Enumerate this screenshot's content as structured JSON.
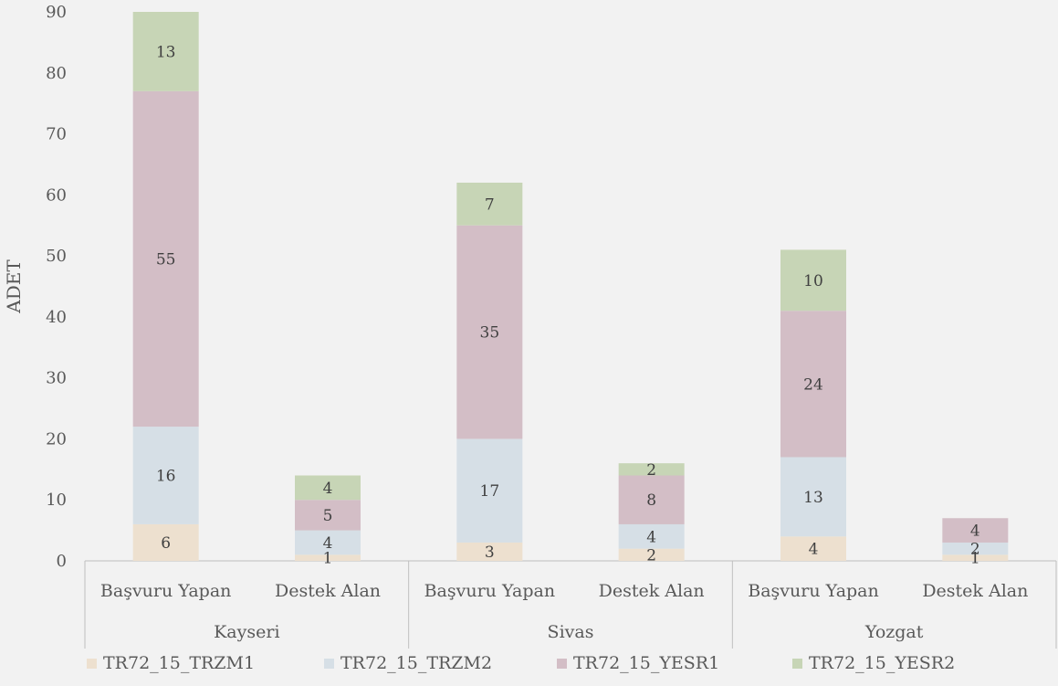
{
  "chart_data": {
    "type": "bar",
    "stacked": true,
    "ylabel": "ADET",
    "ylim": [
      0,
      90
    ],
    "yticks": [
      0,
      10,
      20,
      30,
      40,
      50,
      60,
      70,
      80,
      90
    ],
    "grid": false,
    "legend_position": "bottom",
    "groups": [
      "Kayseri",
      "Sivas",
      "Yozgat"
    ],
    "categories": [
      "Başvuru Yapan",
      "Destek Alan",
      "Başvuru Yapan",
      "Destek Alan",
      "Başvuru Yapan",
      "Destek Alan"
    ],
    "series": [
      {
        "name": "TR72_15_TRZM1",
        "color": "#ede0cf",
        "values": [
          6,
          1,
          3,
          2,
          4,
          1
        ]
      },
      {
        "name": "TR72_15_TRZM2",
        "color": "#d6dfe6",
        "values": [
          16,
          4,
          17,
          4,
          13,
          2
        ]
      },
      {
        "name": "TR72_15_YESR1",
        "color": "#d3bec6",
        "values": [
          55,
          5,
          35,
          8,
          24,
          4
        ]
      },
      {
        "name": "TR72_15_YESR2",
        "color": "#c7d5b6",
        "values": [
          13,
          4,
          7,
          2,
          10,
          0
        ]
      }
    ]
  }
}
